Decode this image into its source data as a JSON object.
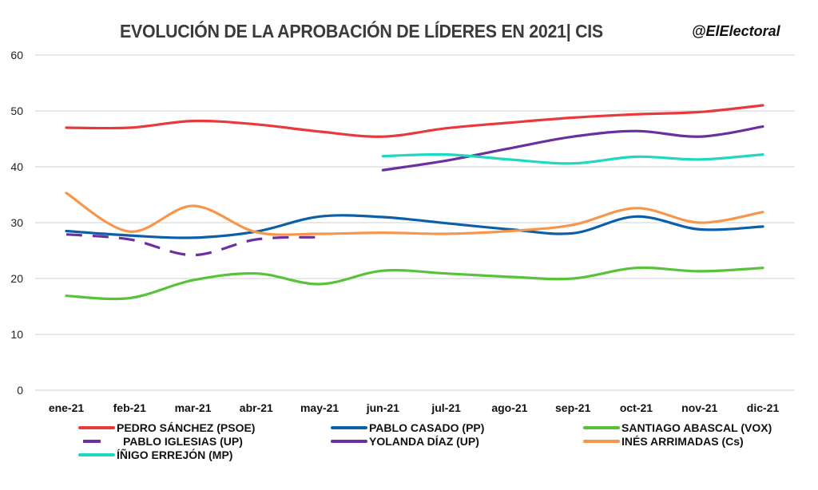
{
  "header": {
    "title": "EVOLUCIÓN DE LA APROBACIÓN DE LÍDERES EN 2021| CIS",
    "handle": "@ElElectoral"
  },
  "chart_data": {
    "type": "line",
    "title": "EVOLUCIÓN DE LA APROBACIÓN DE LÍDERES EN 2021| CIS",
    "xlabel": "",
    "ylabel": "",
    "categories": [
      "ene-21",
      "feb-21",
      "mar-21",
      "abr-21",
      "may-21",
      "jun-21",
      "jul-21",
      "ago-21",
      "sep-21",
      "oct-21",
      "nov-21",
      "dic-21"
    ],
    "ylim": [
      0,
      60
    ],
    "yticks": [
      0,
      10,
      20,
      30,
      40,
      50,
      60
    ],
    "grid": true,
    "smooth": true,
    "legend_position": "bottom",
    "series": [
      {
        "name": "PEDRO SÁNCHEZ (PSOE)",
        "color": "#e8393d",
        "dashed": false,
        "values": [
          47.0,
          47.0,
          48.2,
          47.6,
          46.3,
          45.4,
          46.9,
          47.9,
          48.8,
          49.4,
          49.8,
          51.0
        ]
      },
      {
        "name": "PABLO CASADO (PP)",
        "color": "#0a5fa8",
        "dashed": false,
        "values": [
          28.5,
          27.7,
          27.3,
          28.4,
          31.1,
          31.0,
          29.9,
          28.8,
          28.1,
          31.1,
          28.8,
          29.3
        ]
      },
      {
        "name": "SANTIAGO ABASCAL (VOX)",
        "color": "#57c23a",
        "dashed": false,
        "values": [
          16.9,
          16.5,
          19.7,
          20.9,
          19.0,
          21.4,
          20.9,
          20.3,
          20.0,
          21.9,
          21.3,
          21.9
        ]
      },
      {
        "name": "PABLO IGLESIAS (UP)",
        "color": "#6a2fa0",
        "dashed": true,
        "values": [
          27.9,
          27.0,
          24.2,
          27.0,
          27.4,
          null,
          null,
          null,
          null,
          null,
          null,
          null
        ]
      },
      {
        "name": "YOLANDA DÍAZ (UP)",
        "color": "#6a2fa0",
        "dashed": false,
        "values": [
          null,
          null,
          null,
          null,
          null,
          39.4,
          41.1,
          43.3,
          45.4,
          46.4,
          45.4,
          47.2
        ]
      },
      {
        "name": "INÉS ARRIMADAS (Cs)",
        "color": "#f7964a",
        "dashed": false,
        "values": [
          35.3,
          28.4,
          33.0,
          28.3,
          28.0,
          28.2,
          28.0,
          28.5,
          29.6,
          32.6,
          30.0,
          31.9
        ]
      },
      {
        "name": "ÍÑIGO ERREJÓN (MP)",
        "color": "#1fd8c2",
        "dashed": false,
        "values": [
          null,
          null,
          null,
          null,
          null,
          41.9,
          42.2,
          41.3,
          40.6,
          41.8,
          41.3,
          42.2
        ]
      }
    ]
  }
}
